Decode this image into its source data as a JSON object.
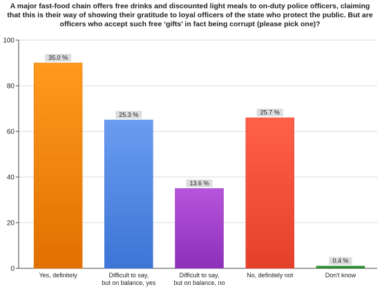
{
  "chart_data": {
    "type": "bar",
    "title_lines": [
      "A major fast-food chain offers free drinks and discounted light meals to on-duty police officers, claiming",
      "that this is their way of showing their gratitude to loyal officers of the state who protect the public.  But are",
      "officers who accept such free ‘gifts’ in fact being corrupt (please pick one)?"
    ],
    "categories": [
      [
        "Yes, definitely"
      ],
      [
        "Difficult to say,",
        "but on balance, yes"
      ],
      [
        "Difficult to say,",
        "but on balance, no"
      ],
      [
        "No, definitely not"
      ],
      [
        "Don't know"
      ]
    ],
    "values": [
      90,
      65,
      35,
      66,
      1
    ],
    "data_labels": [
      "35.0 %",
      "25.3 %",
      "13.6 %",
      "25.7 %",
      "0.4 %"
    ],
    "yticks": [
      0,
      20,
      40,
      60,
      80,
      100
    ],
    "ylim": [
      0,
      100
    ],
    "grid": true,
    "colors": [
      [
        "#ff9a1e",
        "#e07000"
      ],
      [
        "#6a9cf0",
        "#3d74d6"
      ],
      [
        "#b655dc",
        "#8d2fb8"
      ],
      [
        "#ff6148",
        "#e5402a"
      ],
      [
        "#40a040",
        "#1f7a1f"
      ]
    ]
  }
}
